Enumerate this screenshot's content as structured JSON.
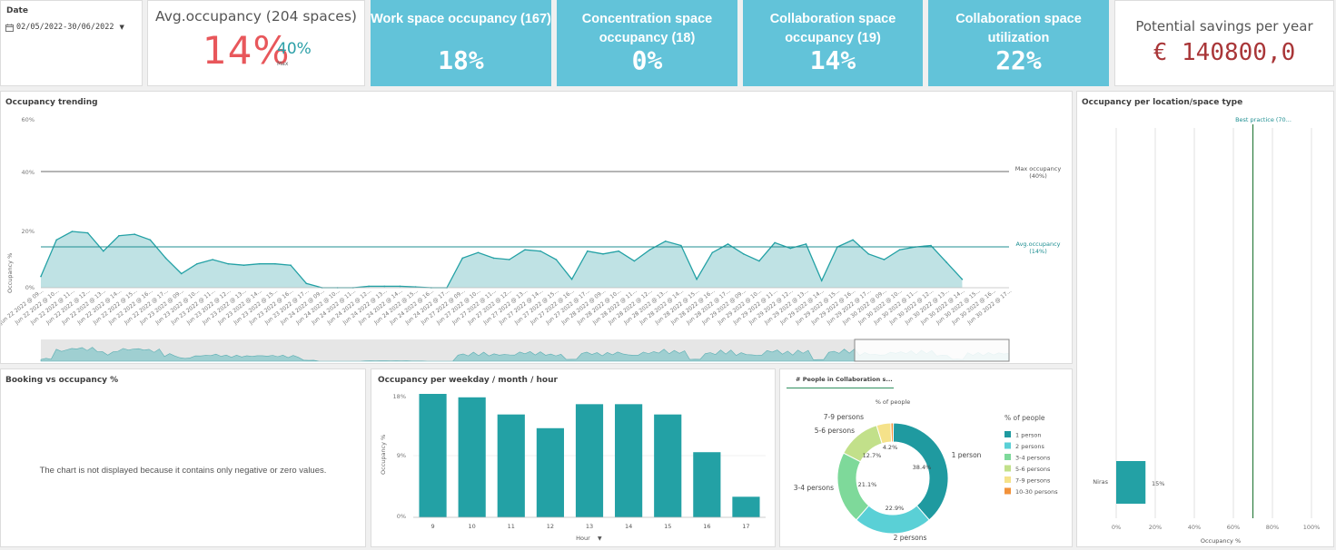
{
  "date_filter": {
    "label": "Date",
    "range": "02/05/2022-30/06/2022"
  },
  "avg_occupancy": {
    "title": "Avg.occupancy (204 spaces)",
    "value": "14%",
    "max_value": "40%",
    "max_label": "Max"
  },
  "kpis": [
    {
      "title": "Work space occupancy (167)",
      "value": "18%"
    },
    {
      "title": "Concentration space occupancy (18)",
      "value": "0%"
    },
    {
      "title": "Collaboration space occupancy (19)",
      "value": "14%"
    },
    {
      "title": "Collaboration space utilization",
      "value": "22%"
    }
  ],
  "savings": {
    "title": "Potential savings per year",
    "value": "€ 140800,0"
  },
  "trend": {
    "title": "Occupancy trending",
    "y_axis_label": "Occupancy %",
    "y_ticks": [
      "60%",
      "40%",
      "20%",
      "0%"
    ],
    "max_ref_label": "Max occupancy",
    "max_ref_value": "(40%)",
    "avg_ref_label": "Avg.occupancy",
    "avg_ref_value": "(14%)",
    "x_tick_labels": [
      "Jun 22 2022 @ 09...",
      "Jun 22 2022 @ 10...",
      "Jun 22 2022 @ 11...",
      "Jun 22 2022 @ 12...",
      "Jun 22 2022 @ 13...",
      "Jun 22 2022 @ 14...",
      "Jun 22 2022 @ 15...",
      "Jun 22 2022 @ 16...",
      "Jun 22 2022 @ 17...",
      "Jun 23 2022 @ 09...",
      "Jun 23 2022 @ 10...",
      "Jun 23 2022 @ 11...",
      "Jun 23 2022 @ 12...",
      "Jun 23 2022 @ 13...",
      "Jun 23 2022 @ 14...",
      "Jun 23 2022 @ 15...",
      "Jun 23 2022 @ 16...",
      "Jun 23 2022 @ 17...",
      "Jun 24 2022 @ 09...",
      "Jun 24 2022 @ 10...",
      "Jun 24 2022 @ 11...",
      "Jun 24 2022 @ 12...",
      "Jun 24 2022 @ 13...",
      "Jun 24 2022 @ 14...",
      "Jun 24 2022 @ 15...",
      "Jun 24 2022 @ 16...",
      "Jun 24 2022 @ 17...",
      "Jun 27 2022 @ 09...",
      "Jun 27 2022 @ 10...",
      "Jun 27 2022 @ 11...",
      "Jun 27 2022 @ 12...",
      "Jun 27 2022 @ 13...",
      "Jun 27 2022 @ 14...",
      "Jun 27 2022 @ 15...",
      "Jun 27 2022 @ 16...",
      "Jun 27 2022 @ 17...",
      "Jun 28 2022 @ 09...",
      "Jun 28 2022 @ 10...",
      "Jun 28 2022 @ 11...",
      "Jun 28 2022 @ 12...",
      "Jun 28 2022 @ 13...",
      "Jun 28 2022 @ 14...",
      "Jun 28 2022 @ 15...",
      "Jun 28 2022 @ 16...",
      "Jun 28 2022 @ 17...",
      "Jun 29 2022 @ 09...",
      "Jun 29 2022 @ 10...",
      "Jun 29 2022 @ 11...",
      "Jun 29 2022 @ 12...",
      "Jun 29 2022 @ 13...",
      "Jun 29 2022 @ 14...",
      "Jun 29 2022 @ 15...",
      "Jun 29 2022 @ 16...",
      "Jun 29 2022 @ 17...",
      "Jun 30 2022 @ 09...",
      "Jun 30 2022 @ 10...",
      "Jun 30 2022 @ 11...",
      "Jun 30 2022 @ 12...",
      "Jun 30 2022 @ 13...",
      "Jun 30 2022 @ 14...",
      "Jun 30 2022 @ 15...",
      "Jun 30 2022 @ 16...",
      "Jun 30 2022 @ 17..."
    ]
  },
  "location": {
    "title": "Occupancy per location/space type",
    "best_practice_label": "Best practice (70...",
    "category": "Niras",
    "bar_label": "15%",
    "x_ticks": [
      "0%",
      "20%",
      "40%",
      "60%",
      "80%",
      "100%"
    ],
    "x_axis_label": "Occupancy %"
  },
  "booking": {
    "title": "Booking vs occupancy %",
    "message": "The chart is not displayed because it contains only negative or zero values."
  },
  "weekday": {
    "title": "Occupancy per weekday / month / hour",
    "y_axis_label": "Occupancy %",
    "y_ticks": [
      "18%",
      "9%",
      "0%"
    ],
    "x_axis_label": "Hour"
  },
  "people": {
    "tab_label": "# People in Collaboration s...",
    "chart_title": "% of people",
    "legend_title": "% of people",
    "legend_items": [
      "1 person",
      "2 persons",
      "3-4 persons",
      "5-6 persons",
      "7-9 persons",
      "10-30 persons"
    ],
    "outer_labels": [
      "1 person",
      "2 persons",
      "3-4 persons",
      "5-6 persons",
      "7-9 persons"
    ],
    "inner_labels": [
      "38.4%",
      "22.9%",
      "21.1%",
      "12.7%",
      "4.2%"
    ]
  },
  "colors": {
    "kpi_bg": "#62c3d9",
    "avg_value": "#e8575b",
    "max_value": "#2a9fa7",
    "savings_value": "#a93638",
    "teal": "#23a1a5",
    "area_fill": "#bfe2e4"
  },
  "chart_data": [
    {
      "type": "area",
      "title": "Occupancy trending",
      "ylabel": "Occupancy %",
      "ylim": [
        0,
        60
      ],
      "grid": false,
      "x": [
        "Jun 22 2022 @ 09...",
        "Jun 22 2022 @ 10...",
        "Jun 22 2022 @ 11...",
        "Jun 22 2022 @ 12...",
        "Jun 22 2022 @ 13...",
        "Jun 22 2022 @ 14...",
        "Jun 22 2022 @ 15...",
        "Jun 22 2022 @ 16...",
        "Jun 22 2022 @ 17...",
        "Jun 23 2022 @ 09...",
        "Jun 23 2022 @ 10...",
        "Jun 23 2022 @ 11...",
        "Jun 23 2022 @ 12...",
        "Jun 23 2022 @ 13...",
        "Jun 23 2022 @ 14...",
        "Jun 23 2022 @ 15...",
        "Jun 23 2022 @ 16...",
        "Jun 23 2022 @ 17...",
        "Jun 24 2022 @ 09...",
        "Jun 24 2022 @ 10...",
        "Jun 24 2022 @ 11...",
        "Jun 24 2022 @ 12...",
        "Jun 24 2022 @ 13...",
        "Jun 24 2022 @ 14...",
        "Jun 24 2022 @ 15...",
        "Jun 24 2022 @ 16...",
        "Jun 24 2022 @ 17...",
        "Jun 27 2022 @ 09...",
        "Jun 27 2022 @ 10...",
        "Jun 27 2022 @ 11...",
        "Jun 27 2022 @ 12...",
        "Jun 27 2022 @ 13...",
        "Jun 27 2022 @ 14...",
        "Jun 27 2022 @ 15...",
        "Jun 27 2022 @ 16...",
        "Jun 27 2022 @ 17...",
        "Jun 28 2022 @ 09...",
        "Jun 28 2022 @ 10...",
        "Jun 28 2022 @ 11...",
        "Jun 28 2022 @ 12...",
        "Jun 28 2022 @ 13...",
        "Jun 28 2022 @ 14...",
        "Jun 28 2022 @ 15...",
        "Jun 28 2022 @ 16...",
        "Jun 28 2022 @ 17...",
        "Jun 29 2022 @ 09...",
        "Jun 29 2022 @ 10...",
        "Jun 29 2022 @ 11...",
        "Jun 29 2022 @ 12...",
        "Jun 29 2022 @ 13...",
        "Jun 29 2022 @ 14...",
        "Jun 29 2022 @ 15...",
        "Jun 29 2022 @ 16...",
        "Jun 29 2022 @ 17...",
        "Jun 30 2022 @ 09...",
        "Jun 30 2022 @ 10...",
        "Jun 30 2022 @ 11...",
        "Jun 30 2022 @ 12...",
        "Jun 30 2022 @ 13...",
        "Jun 30 2022 @ 14...",
        "Jun 30 2022 @ 15...",
        "Jun 30 2022 @ 16...",
        "Jun 30 2022 @ 17..."
      ],
      "values": [
        4,
        17,
        20,
        19.5,
        13,
        18.5,
        19,
        17,
        10.5,
        5,
        8.5,
        10,
        8.5,
        8,
        8.5,
        8.5,
        8,
        1.5,
        0,
        0,
        0,
        0.5,
        0.5,
        0.5,
        0.3,
        0,
        0,
        10.5,
        12.5,
        10.5,
        10,
        13.5,
        13,
        10,
        3,
        13,
        12,
        13,
        9.5,
        13.5,
        16.5,
        15,
        3,
        12.5,
        15.5,
        12,
        9.5,
        16,
        14,
        15.5,
        2.5,
        14.5,
        17,
        12,
        10,
        13.5,
        14.5,
        15,
        9,
        3,
        null,
        null,
        null
      ],
      "reference_lines": [
        {
          "label": "Max occupancy",
          "value": 40
        },
        {
          "label": "Avg.occupancy",
          "value": 14
        }
      ]
    },
    {
      "type": "bar",
      "title": "Occupancy per weekday / month / hour",
      "xlabel": "Hour",
      "ylabel": "Occupancy %",
      "ylim": [
        0,
        18
      ],
      "categories": [
        "9",
        "10",
        "11",
        "12",
        "13",
        "14",
        "15",
        "16",
        "17"
      ],
      "values": [
        18,
        17.5,
        15,
        13,
        16.5,
        16.5,
        15,
        9.5,
        3
      ]
    },
    {
      "type": "pie",
      "title": "% of people",
      "categories": [
        "1 person",
        "2 persons",
        "3-4 persons",
        "5-6 persons",
        "7-9 persons",
        "10-30 persons"
      ],
      "values": [
        38.4,
        22.9,
        21.1,
        12.7,
        4.2,
        0.7
      ],
      "colors": [
        "#1f9aa0",
        "#5ad0d6",
        "#7ed99a",
        "#c2e08a",
        "#f5e28a",
        "#f2923a"
      ],
      "legend": "right"
    },
    {
      "type": "bar",
      "title": "Occupancy per location/space type",
      "xlabel": "Occupancy %",
      "xlim": [
        0,
        100
      ],
      "categories": [
        "Niras"
      ],
      "values": [
        15
      ],
      "reference_lines": [
        {
          "label": "Best practice (70...",
          "value": 70
        }
      ]
    }
  ]
}
